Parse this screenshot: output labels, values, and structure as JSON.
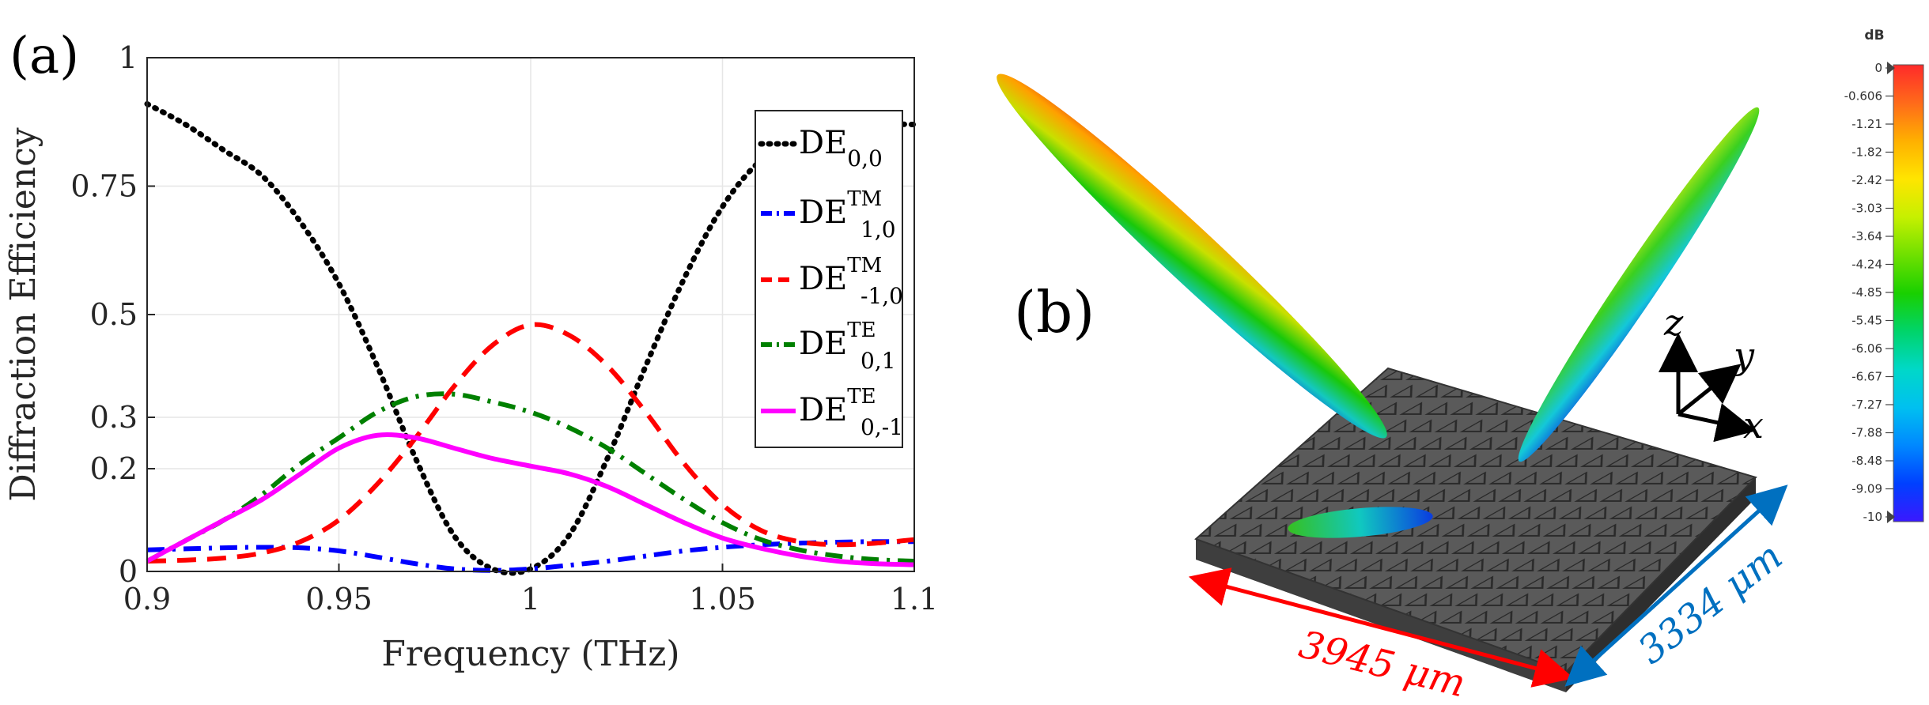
{
  "panel_a_label": "(a)",
  "panel_b_label": "(b)",
  "chart_data": {
    "type": "line",
    "title": "",
    "xlabel": "Frequency (THz)",
    "ylabel": "Diffraction Efficiency",
    "xlim": [
      0.9,
      1.1
    ],
    "ylim": [
      0,
      1
    ],
    "xticks": [
      0.9,
      0.95,
      1.0,
      1.05,
      1.1
    ],
    "xtick_labels": [
      "0.9",
      "0.95",
      "1",
      "1.05",
      "1.1"
    ],
    "yticks": [
      0,
      0.2,
      0.3,
      0.5,
      0.75,
      1
    ],
    "ytick_labels": [
      "0",
      "0.2",
      "0.3",
      "0.5",
      "0.75",
      "1"
    ],
    "grid": true,
    "legend_position": "right",
    "x": [
      0.9,
      0.91,
      0.92,
      0.93,
      0.94,
      0.95,
      0.96,
      0.97,
      0.98,
      0.99,
      1.0,
      1.01,
      1.02,
      1.03,
      1.04,
      1.05,
      1.06,
      1.07,
      1.08,
      1.09,
      1.1
    ],
    "series": [
      {
        "name": "DE",
        "sub": "0,0",
        "sup": "",
        "color": "#000000",
        "dash": "dotted",
        "values": [
          0.91,
          0.87,
          0.82,
          0.77,
          0.68,
          0.56,
          0.4,
          0.22,
          0.07,
          0.005,
          0.005,
          0.07,
          0.22,
          0.4,
          0.57,
          0.71,
          0.8,
          0.84,
          0.86,
          0.87,
          0.87
        ]
      },
      {
        "name": "DE",
        "sub": "1,0",
        "sup": "TM",
        "color": "#0000ff",
        "dash": "dashdot",
        "values": [
          0.042,
          0.044,
          0.046,
          0.047,
          0.046,
          0.04,
          0.028,
          0.015,
          0.005,
          0.002,
          0.005,
          0.012,
          0.02,
          0.03,
          0.04,
          0.047,
          0.052,
          0.055,
          0.057,
          0.058,
          0.058
        ]
      },
      {
        "name": "DE",
        "sub": "-1,0",
        "sup": "TM",
        "color": "#ff0000",
        "dash": "dashed",
        "values": [
          0.02,
          0.022,
          0.026,
          0.036,
          0.058,
          0.1,
          0.17,
          0.26,
          0.36,
          0.44,
          0.48,
          0.46,
          0.4,
          0.31,
          0.21,
          0.13,
          0.08,
          0.058,
          0.052,
          0.055,
          0.062
        ]
      },
      {
        "name": "DE",
        "sub": "0,1",
        "sup": "TE",
        "color": "#008000",
        "dash": "dashdot",
        "values": [
          0.02,
          0.06,
          0.1,
          0.15,
          0.21,
          0.26,
          0.31,
          0.34,
          0.345,
          0.33,
          0.31,
          0.28,
          0.24,
          0.19,
          0.14,
          0.095,
          0.062,
          0.042,
          0.03,
          0.023,
          0.02
        ]
      },
      {
        "name": "DE",
        "sub": "0,-1",
        "sup": "TE",
        "color": "#ff00ff",
        "dash": "solid",
        "values": [
          0.02,
          0.06,
          0.1,
          0.14,
          0.19,
          0.24,
          0.265,
          0.26,
          0.24,
          0.22,
          0.205,
          0.19,
          0.165,
          0.13,
          0.095,
          0.065,
          0.045,
          0.03,
          0.02,
          0.015,
          0.013
        ]
      }
    ]
  },
  "axis_labels": {
    "z": "z",
    "y": "y",
    "x": "x"
  },
  "dimension_red": "3945 μm",
  "dimension_blue": "3334 μm",
  "colorbar": {
    "unit": "dB",
    "ticks": [
      "0",
      "-0.606",
      "-1.21",
      "-1.82",
      "-2.42",
      "-3.03",
      "-3.64",
      "-4.24",
      "-4.85",
      "-5.45",
      "-6.06",
      "-6.67",
      "-7.27",
      "-7.88",
      "-8.48",
      "-9.09",
      "-10"
    ],
    "colors": [
      "#ff2a2a",
      "#ff6a1a",
      "#ffb000",
      "#ffe500",
      "#c6f000",
      "#6fe000",
      "#19d000",
      "#00d46a",
      "#00d8c8",
      "#00c0f0",
      "#0088ff",
      "#0040ff",
      "#3a18ff"
    ]
  }
}
